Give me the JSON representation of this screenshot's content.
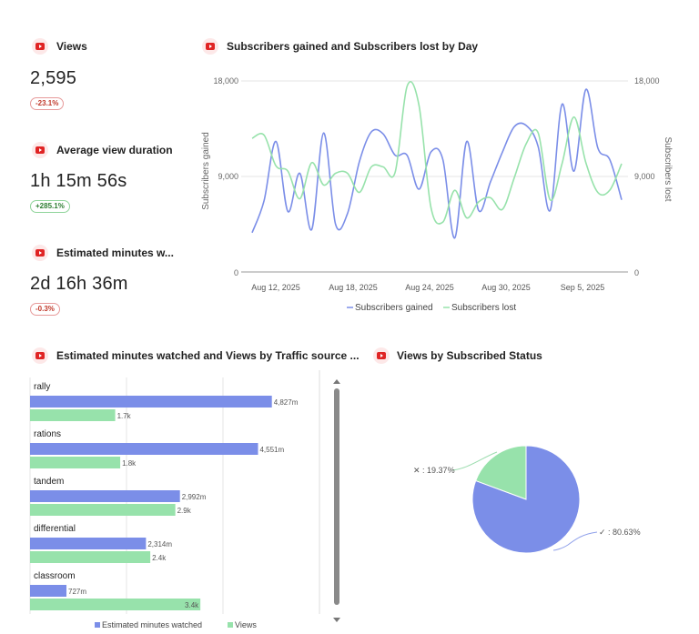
{
  "metrics": [
    {
      "title": "Views",
      "value": "2,595",
      "change": "-23.1%",
      "trend": "down"
    },
    {
      "title": "Average view duration",
      "value": "1h 15m 56s",
      "change": "+285.1%",
      "trend": "up"
    },
    {
      "title": "Estimated minutes w...",
      "value": "2d 16h 36m",
      "change": "-0.3%",
      "trend": "down"
    }
  ],
  "line_chart": {
    "title": "Subscribers gained and Subscribers lost by Day",
    "left_ticks": [
      "18,000",
      "9,000",
      "0"
    ],
    "right_ticks": [
      "18,000",
      "9,000",
      "0"
    ],
    "ylabel_left": "Subscribers gained",
    "ylabel_right": "Subscribers lost",
    "x_ticks": [
      "Aug 12, 2025",
      "Aug 18, 2025",
      "Aug 24, 2025",
      "Aug 30, 2025",
      "Sep 5, 2025"
    ],
    "legend": [
      "Subscribers gained",
      "Subscribers lost"
    ]
  },
  "bar_chart_section": {
    "title": "Estimated minutes watched and Views by Traffic source ...",
    "legend": [
      "Estimated minutes watched",
      "Views"
    ]
  },
  "pie_section": {
    "title": "Views by Subscribed Status",
    "labels": [
      "✕ : 19.37%",
      "✓ : 80.63%"
    ]
  },
  "colors": {
    "blue": "#7b8ee8",
    "green": "#97e2ab",
    "grid": "#e6e6e6",
    "accent_red": "#e02424"
  },
  "chart_data": [
    {
      "type": "line",
      "title": "Subscribers gained and Subscribers lost by Day",
      "x": [
        "Aug 8, 2025",
        "Aug 9, 2025",
        "Aug 10, 2025",
        "Aug 11, 2025",
        "Aug 12, 2025",
        "Aug 13, 2025",
        "Aug 14, 2025",
        "Aug 15, 2025",
        "Aug 16, 2025",
        "Aug 17, 2025",
        "Aug 18, 2025",
        "Aug 19, 2025",
        "Aug 20, 2025",
        "Aug 21, 2025",
        "Aug 22, 2025",
        "Aug 23, 2025",
        "Aug 24, 2025",
        "Aug 25, 2025",
        "Aug 26, 2025",
        "Aug 27, 2025",
        "Aug 28, 2025",
        "Aug 29, 2025",
        "Aug 30, 2025",
        "Aug 31, 2025",
        "Sep 1, 2025",
        "Sep 2, 2025",
        "Sep 3, 2025",
        "Sep 4, 2025",
        "Sep 5, 2025",
        "Sep 6, 2025",
        "Sep 7, 2025",
        "Sep 8, 2025"
      ],
      "series": [
        {
          "name": "Subscribers gained",
          "axis": "left",
          "values": [
            3700,
            6700,
            12300,
            5700,
            9300,
            4000,
            13100,
            4500,
            5500,
            10400,
            13200,
            13000,
            11000,
            11000,
            7800,
            11300,
            10600,
            3200,
            12300,
            5800,
            8500,
            11300,
            13700,
            13800,
            11800,
            5800,
            15800,
            9500,
            17200,
            11700,
            10600,
            6800
          ]
        },
        {
          "name": "Subscribers lost",
          "axis": "left",
          "values": [
            12600,
            12900,
            10000,
            9500,
            6900,
            10300,
            8200,
            9300,
            9300,
            7500,
            9900,
            9900,
            9400,
            17500,
            15700,
            6100,
            4700,
            7700,
            5100,
            6600,
            7000,
            5900,
            8900,
            12100,
            13100,
            6800,
            10200,
            14600,
            10300,
            7500,
            7700,
            10200
          ]
        }
      ],
      "ylim": [
        0,
        18000
      ],
      "ylabel": "Subscribers gained",
      "ylabel_right": "Subscribers lost",
      "x_tick_labels": [
        "Aug 12, 2025",
        "Aug 18, 2025",
        "Aug 24, 2025",
        "Aug 30, 2025",
        "Sep 5, 2025"
      ],
      "grid": true,
      "legend": "bottom"
    },
    {
      "type": "bar",
      "title": "Estimated minutes watched and Views by Traffic source ...",
      "orientation": "horizontal",
      "categories": [
        "rally",
        "rations",
        "tandem",
        "differential",
        "classroom"
      ],
      "series": [
        {
          "name": "Estimated minutes watched",
          "values": [
            4827,
            4551,
            2992,
            2314,
            727
          ],
          "labels": [
            "4,827m",
            "4,551m",
            "2,992m",
            "2,314m",
            "727m"
          ]
        },
        {
          "name": "Views",
          "values": [
            1700,
            1800,
            2900,
            2400,
            3400
          ],
          "labels": [
            "1.7k",
            "1.8k",
            "2.9k",
            "2.4k",
            "3.4k"
          ]
        }
      ],
      "legend": "bottom"
    },
    {
      "type": "pie",
      "title": "Views by Subscribed Status",
      "categories": [
        "✕",
        "✓"
      ],
      "values": [
        19.37,
        80.63
      ]
    }
  ]
}
